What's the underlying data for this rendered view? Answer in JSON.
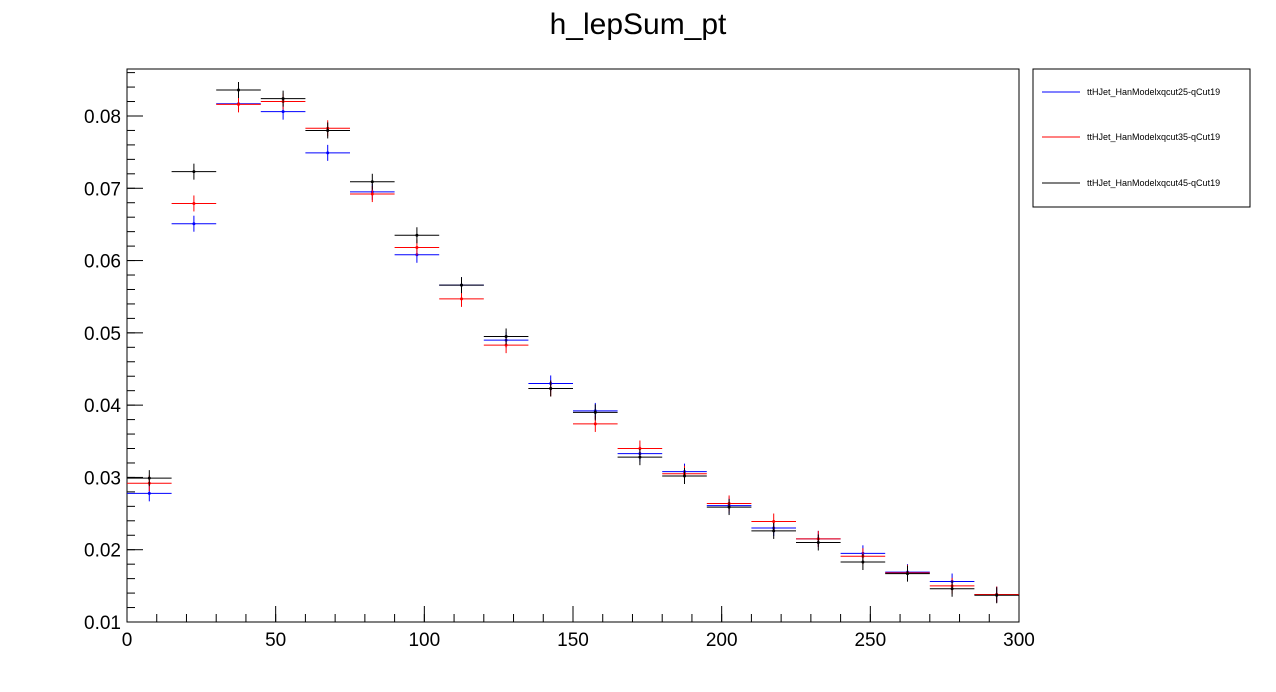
{
  "chart_data": {
    "type": "scatter",
    "title": "h_lepSum_pt",
    "xlabel": "",
    "ylabel": "",
    "xlim": [
      0,
      300
    ],
    "ylim": [
      0.01,
      0.0865
    ],
    "bin_width": 15,
    "x_ticks": [
      0,
      50,
      100,
      150,
      200,
      250,
      300
    ],
    "x_tick_labels": [
      "0",
      "50",
      "100",
      "150",
      "200",
      "250",
      "300"
    ],
    "y_ticks": [
      0.01,
      0.02,
      0.03,
      0.04,
      0.05,
      0.06,
      0.07,
      0.08
    ],
    "y_tick_labels": [
      "0.01",
      "0.02",
      "0.03",
      "0.04",
      "0.05",
      "0.06",
      "0.07",
      "0.08"
    ],
    "grid": false,
    "legend_position": "right",
    "x": [
      7.5,
      22.5,
      37.5,
      52.5,
      67.5,
      82.5,
      97.5,
      112.5,
      127.5,
      142.5,
      157.5,
      172.5,
      187.5,
      202.5,
      217.5,
      232.5,
      247.5,
      262.5,
      277.5,
      292.5
    ],
    "series": [
      {
        "name": "ttHJet_HanModelxqcut25-qCut19",
        "color": "#0000ff",
        "values": [
          0.0278,
          0.0651,
          0.0817,
          0.0806,
          0.0749,
          0.0695,
          0.0608,
          0.0566,
          0.049,
          0.043,
          0.0392,
          0.0333,
          0.0308,
          0.0261,
          0.023,
          0.0215,
          0.0195,
          0.0169,
          0.0156,
          0.0138
        ]
      },
      {
        "name": "ttHJet_HanModelxqcut35-qCut19",
        "color": "#ff0000",
        "values": [
          0.0292,
          0.0679,
          0.0816,
          0.082,
          0.0783,
          0.0692,
          0.0618,
          0.0547,
          0.0483,
          0.0423,
          0.0374,
          0.034,
          0.0305,
          0.0264,
          0.0239,
          0.0215,
          0.0191,
          0.0168,
          0.015,
          0.0138
        ]
      },
      {
        "name": "ttHJet_HanModelxqcut45-qCut19",
        "color": "#000000",
        "values": [
          0.0299,
          0.0723,
          0.0836,
          0.0824,
          0.078,
          0.0709,
          0.0635,
          0.0566,
          0.0495,
          0.0423,
          0.039,
          0.0328,
          0.0302,
          0.0259,
          0.0226,
          0.021,
          0.0183,
          0.0167,
          0.0146,
          0.0137
        ]
      }
    ]
  }
}
